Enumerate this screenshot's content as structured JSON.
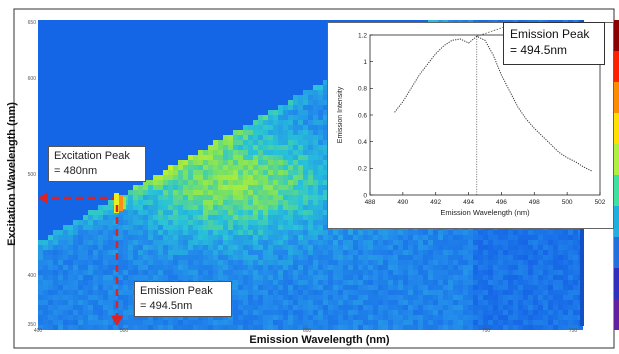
{
  "chart_data": [
    {
      "type": "heatmap",
      "xlabel": "Emission Wavelength (nm)",
      "ylabel": "Excitation Wavelength (nm)",
      "xlim": [
        400,
        750
      ],
      "ylim": [
        350,
        650
      ],
      "x_ticks": [
        "400",
        "500",
        "600",
        "700",
        "750"
      ],
      "y_ticks": [
        "650",
        "600",
        "500",
        "400",
        "350"
      ],
      "annotations": {
        "excitation_peak": {
          "line1": "Excitation Peak",
          "line2": "= 480nm",
          "value": 480
        },
        "emission_peak": {
          "line1": "Emission Peak",
          "line2": "= 494.5nm",
          "value": 494.5
        }
      },
      "colors": {
        "background": "#1466e6",
        "low": "#1e78f0",
        "mid": "#28c8dc",
        "high": "#b4f032",
        "peak": "#ff3c1e",
        "arrow": "#dd2222"
      }
    },
    {
      "type": "line",
      "xlabel": "Emission Wavelength (nm)",
      "ylabel": "Emission Intensity",
      "xlim": [
        488,
        502
      ],
      "ylim": [
        0,
        1.2
      ],
      "x_ticks": [
        "488",
        "490",
        "492",
        "494",
        "496",
        "498",
        "500",
        "502"
      ],
      "y_ticks": [
        "0",
        "0.2",
        "0.4",
        "0.6",
        "0.8",
        "1",
        "1.2"
      ],
      "x": [
        489.5,
        490.0,
        490.5,
        491.0,
        491.5,
        492.0,
        492.5,
        493.0,
        493.5,
        494.0,
        494.5,
        495.0,
        495.5,
        496.0,
        496.5,
        497.0,
        497.5,
        498.0,
        498.5,
        499.0,
        499.5,
        500.0,
        500.5,
        501.0,
        501.5
      ],
      "y": [
        0.62,
        0.7,
        0.8,
        0.9,
        0.98,
        1.06,
        1.12,
        1.16,
        1.17,
        1.14,
        1.19,
        1.16,
        1.05,
        0.9,
        0.78,
        0.66,
        0.57,
        0.5,
        0.44,
        0.38,
        0.32,
        0.28,
        0.25,
        0.21,
        0.18
      ],
      "peak_x": 494.5,
      "peak_label": {
        "line1": "Emission Peak",
        "line2": "= 494.5nm"
      }
    }
  ]
}
